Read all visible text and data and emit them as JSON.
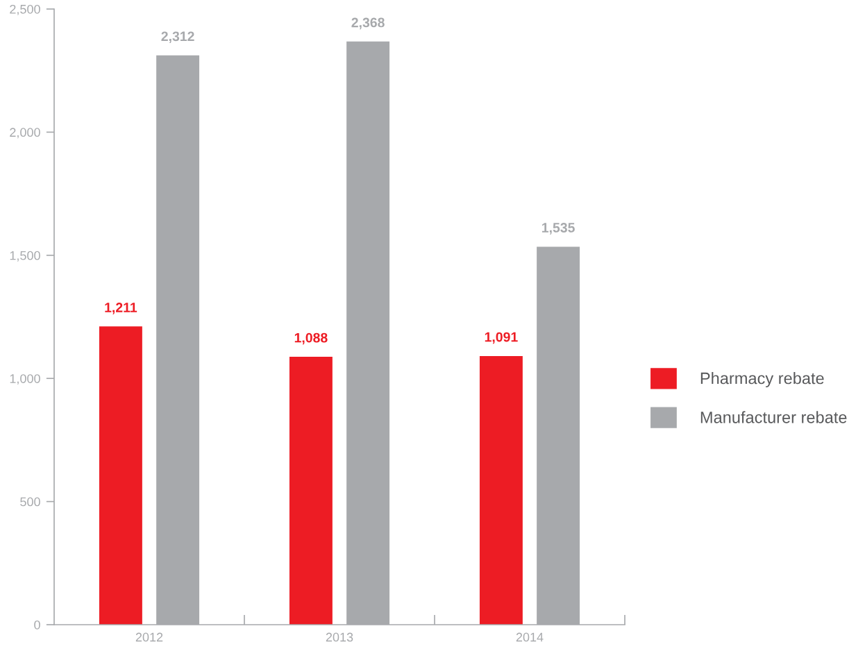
{
  "chart_data": {
    "type": "bar",
    "categories": [
      "2012",
      "2013",
      "2014"
    ],
    "series": [
      {
        "name": "Pharmacy rebate",
        "color": "#ed1c24",
        "values": [
          1211,
          1088,
          1091
        ],
        "value_labels": [
          "1,211",
          "1,088",
          "1,091"
        ]
      },
      {
        "name": "Manufacturer rebate",
        "color": "#a7a9ac",
        "values": [
          2312,
          2368,
          1535
        ],
        "value_labels": [
          "2,312",
          "2,368",
          "1,535"
        ]
      }
    ],
    "ylim": [
      0,
      2500
    ],
    "yticks": [
      0,
      {
        "value": 500,
        "label": "500"
      },
      {
        "value": 1000,
        "label": "1,000"
      },
      {
        "value": 1500,
        "label": "1,500"
      },
      {
        "value": 2000,
        "label": "2,000"
      },
      {
        "value": 2500,
        "label": "2,500"
      }
    ],
    "grid": false,
    "legend": "right"
  }
}
